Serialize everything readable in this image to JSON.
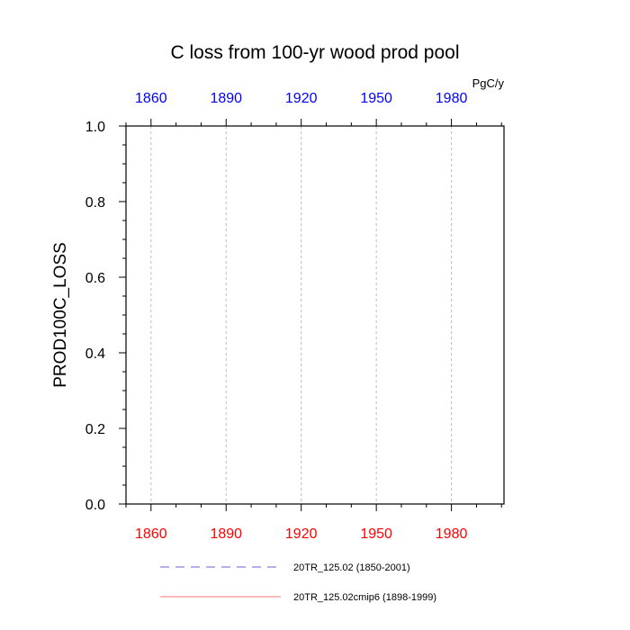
{
  "chart_data": {
    "type": "line",
    "title": "C loss from 100-yr wood prod pool",
    "units": "PgC/y",
    "ylabel": "PROD100C_LOSS",
    "xlabel": "",
    "xlim": [
      1850,
      2001
    ],
    "ylim": [
      0.0,
      1.0
    ],
    "x_ticks": [
      1860,
      1890,
      1920,
      1950,
      1980
    ],
    "x_tick_labels_top": [
      "1860",
      "1890",
      "1920",
      "1950",
      "1980"
    ],
    "x_tick_labels_bottom": [
      "1860",
      "1890",
      "1920",
      "1950",
      "1980"
    ],
    "y_ticks": [
      0.0,
      0.2,
      0.4,
      0.6,
      0.8,
      1.0
    ],
    "y_tick_labels": [
      "0.0",
      "0.2",
      "0.4",
      "0.6",
      "0.8",
      "1.0"
    ],
    "grid": "vertical dashed at x ticks",
    "colors": {
      "top_tick_labels": "#0000ff",
      "bottom_tick_labels": "#ff0000",
      "grid": "#bbbbbb"
    },
    "series": [
      {
        "name": "20TR_125.02 (1850-2001)",
        "color": "#6666cc",
        "style": "dashed",
        "x": [
          1850,
          2001
        ],
        "y": [
          0.0,
          0.0
        ]
      },
      {
        "name": "20TR_125.02cmip6 (1898-1999)",
        "color": "#ff7777",
        "style": "solid",
        "x": [
          1898,
          1999
        ],
        "y": [
          0.0,
          0.0
        ]
      }
    ],
    "legend_placement": "bottom"
  }
}
